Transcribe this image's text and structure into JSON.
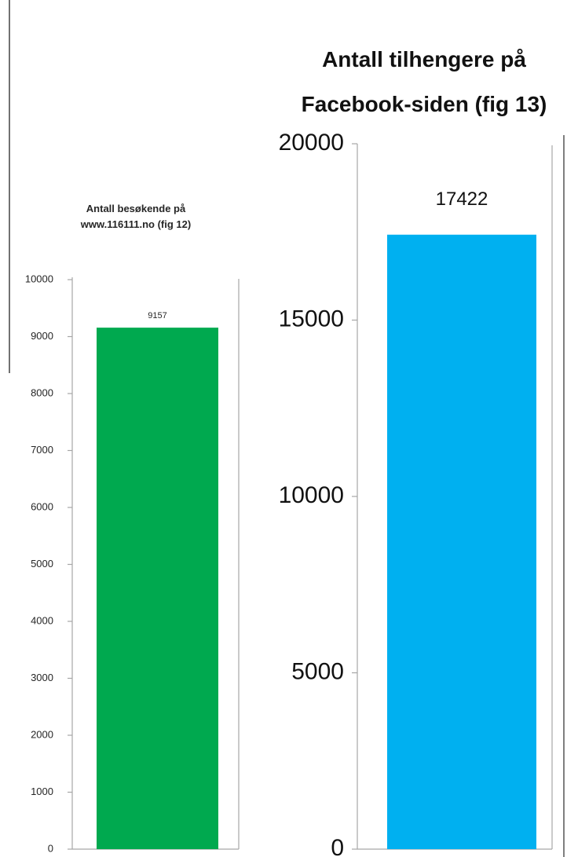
{
  "chart_data": [
    {
      "type": "bar",
      "title_lines": [
        "Antall besøkende på",
        "www.116111.no (fig 12)"
      ],
      "categories": [
        ""
      ],
      "values": [
        9157
      ],
      "data_labels": [
        "9157"
      ],
      "ylim": [
        0,
        10000
      ],
      "yticks": [
        "0",
        "1000",
        "2000",
        "3000",
        "4000",
        "5000",
        "6000",
        "7000",
        "8000",
        "9000",
        "10000"
      ],
      "xlabel": "",
      "ylabel": "",
      "grid": false,
      "legend": "none",
      "colors": {
        "bar": "#00a94f",
        "axis": "#a6a6a6"
      }
    },
    {
      "type": "bar",
      "title_lines": [
        "Antall tilhengere på",
        "Facebook-siden (fig 13)"
      ],
      "categories": [
        ""
      ],
      "values": [
        17422
      ],
      "data_labels": [
        "17422"
      ],
      "ylim": [
        0,
        20000
      ],
      "yticks": [
        "0",
        "5000",
        "10000",
        "15000",
        "20000"
      ],
      "xlabel": "",
      "ylabel": "",
      "grid": false,
      "legend": "none",
      "colors": {
        "bar": "#00b0f0",
        "axis": "#a6a6a6"
      }
    }
  ]
}
